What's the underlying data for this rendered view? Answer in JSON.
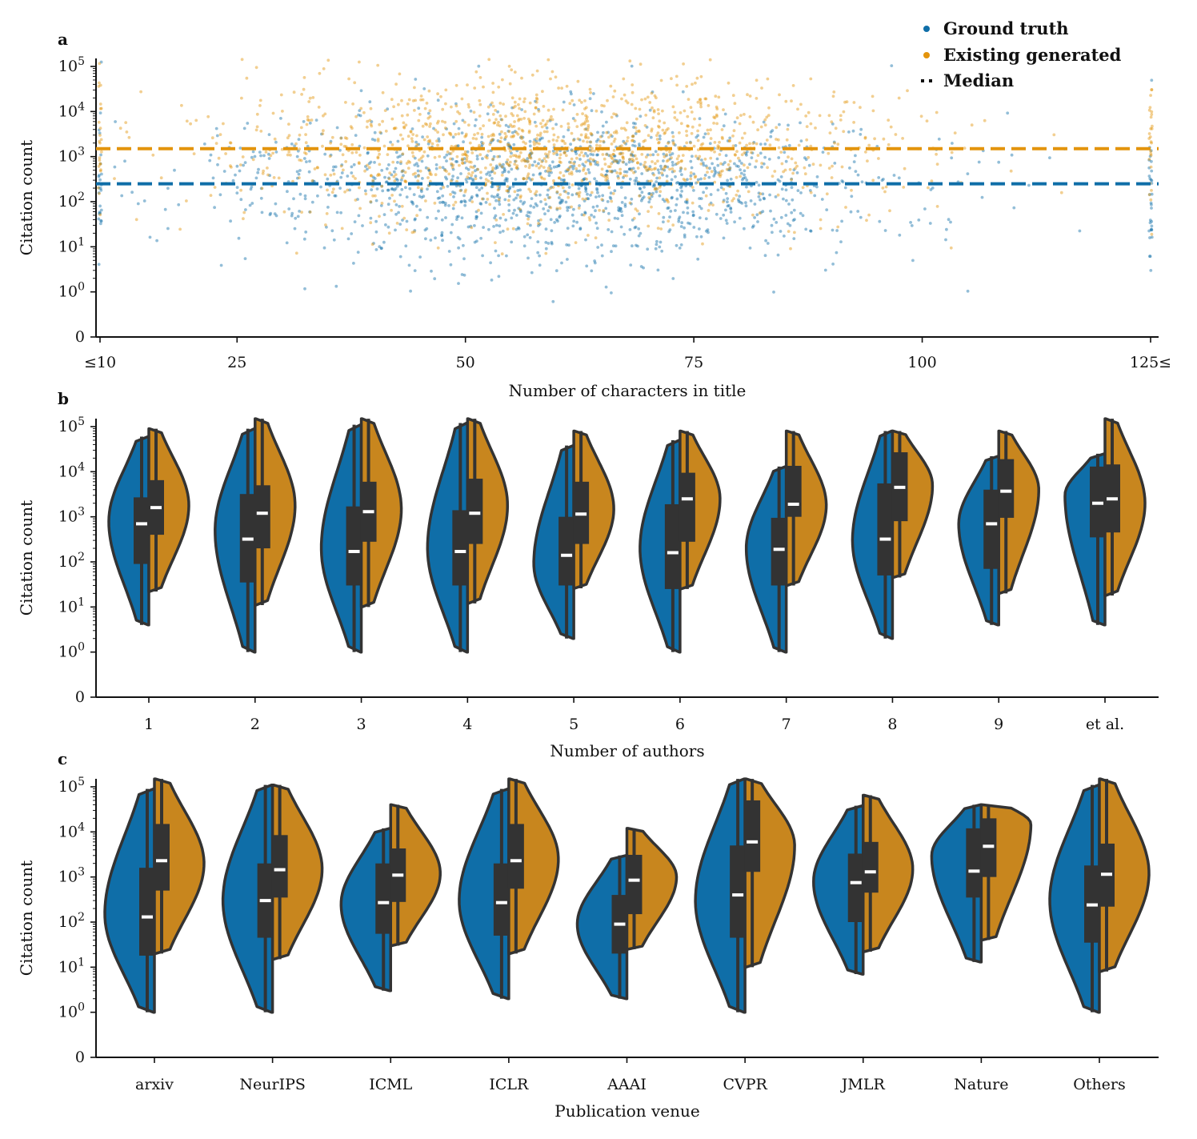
{
  "colors": {
    "ground_truth": "#0f6ea8",
    "existing_generated": "#e3940c",
    "violin_gen": "#c8861e",
    "box": "#333333",
    "median_mark": "#ffffff"
  },
  "chart_data": [
    {
      "panel": "a",
      "type": "scatter",
      "xlabel": "Number of characters in title",
      "ylabel": "Citation count",
      "xlim": [
        10,
        125
      ],
      "xticks": [
        10,
        25,
        50,
        75,
        100,
        125
      ],
      "xtick_labels": [
        "≤10",
        "25",
        "50",
        "75",
        "100",
        "125≤"
      ],
      "yscale": "symlog",
      "ylim": [
        0,
        150000
      ],
      "yticks": [
        0,
        1,
        10,
        100,
        1000,
        10000,
        100000
      ],
      "ytick_labels": [
        "0",
        "10⁰",
        "10¹",
        "10²",
        "10³",
        "10⁴",
        "10⁵"
      ],
      "legend": {
        "placement": "top-right",
        "entries": [
          "Ground truth",
          "Existing generated",
          "Median"
        ]
      },
      "series": [
        {
          "name": "Ground truth",
          "median": 250,
          "n_points_approx": 2500
        },
        {
          "name": "Existing generated",
          "median": 1500,
          "n_points_approx": 2500
        }
      ]
    },
    {
      "panel": "b",
      "type": "violin",
      "xlabel": "Number of authors",
      "ylabel": "Citation count",
      "yscale": "symlog",
      "ylim": [
        0,
        150000
      ],
      "yticks": [
        0,
        1,
        10,
        100,
        1000,
        10000,
        100000
      ],
      "ytick_labels": [
        "0",
        "10⁰",
        "10¹",
        "10²",
        "10³",
        "10⁴",
        "10⁵"
      ],
      "categories": [
        "1",
        "2",
        "3",
        "4",
        "5",
        "6",
        "7",
        "8",
        "9",
        "et al."
      ],
      "series": [
        {
          "name": "Ground truth",
          "min": [
            4,
            1,
            1,
            1,
            2,
            1,
            1,
            2,
            4,
            4
          ],
          "q1": [
            90,
            35,
            30,
            30,
            30,
            25,
            30,
            50,
            70,
            350
          ],
          "median": [
            700,
            320,
            170,
            170,
            140,
            160,
            190,
            320,
            700,
            2000
          ],
          "q3": [
            2700,
            3200,
            1700,
            1400,
            1000,
            1900,
            950,
            5500,
            4000,
            13000
          ],
          "max": [
            60000,
            90000,
            110000,
            120000,
            38000,
            50000,
            13000,
            80000,
            22000,
            25000
          ],
          "mode": [
            800,
            500,
            200,
            200,
            90,
            200,
            200,
            300,
            700,
            3000
          ]
        },
        {
          "name": "Existing generated",
          "min": [
            22,
            11,
            10,
            12,
            26,
            25,
            30,
            45,
            20,
            18
          ],
          "q1": [
            400,
            200,
            280,
            250,
            250,
            280,
            1000,
            800,
            950,
            450
          ],
          "median": [
            1600,
            1200,
            1300,
            1200,
            1150,
            2500,
            1900,
            4500,
            3700,
            2500
          ],
          "q3": [
            6500,
            5000,
            6000,
            7000,
            6000,
            9500,
            13500,
            27000,
            19000,
            14500
          ],
          "max": [
            90000,
            150000,
            150000,
            150000,
            80000,
            80000,
            80000,
            80000,
            80000,
            150000
          ],
          "mode": [
            1800,
            1800,
            1500,
            1800,
            1500,
            2500,
            1800,
            5000,
            4000,
            2000
          ]
        }
      ]
    },
    {
      "panel": "c",
      "type": "violin",
      "xlabel": "Publication venue",
      "ylabel": "Citation count",
      "yscale": "symlog",
      "ylim": [
        0,
        150000
      ],
      "yticks": [
        0,
        1,
        10,
        100,
        1000,
        10000,
        100000
      ],
      "ytick_labels": [
        "0",
        "10⁰",
        "10¹",
        "10²",
        "10³",
        "10⁴",
        "10⁵"
      ],
      "categories": [
        "arxiv",
        "NeurIPS",
        "ICML",
        "ICLR",
        "AAAI",
        "CVPR",
        "JMLR",
        "Nature",
        "Others"
      ],
      "series": [
        {
          "name": "Ground truth",
          "min": [
            1,
            1,
            3,
            2,
            2,
            1,
            7,
            13,
            1
          ],
          "q1": [
            18,
            45,
            55,
            50,
            20,
            45,
            100,
            350,
            35
          ],
          "median": [
            130,
            300,
            270,
            270,
            90,
            400,
            750,
            1350,
            240
          ],
          "q3": [
            1600,
            2000,
            2000,
            2000,
            400,
            5000,
            3300,
            12000,
            1800
          ],
          "max": [
            90000,
            110000,
            12000,
            90000,
            3000,
            150000,
            38000,
            40000,
            110000
          ],
          "mode": [
            150,
            300,
            250,
            300,
            90,
            300,
            800,
            3000,
            300
          ]
        },
        {
          "name": "Existing generated",
          "min": [
            20,
            15,
            30,
            20,
            25,
            10,
            22,
            40,
            8
          ],
          "q1": [
            500,
            350,
            280,
            550,
            150,
            1300,
            450,
            1000,
            220
          ],
          "median": [
            2300,
            1450,
            1100,
            2300,
            850,
            6000,
            1300,
            4800,
            1150
          ],
          "q3": [
            15000,
            8500,
            4300,
            15000,
            3100,
            50000,
            6000,
            20000,
            5500
          ],
          "max": [
            150000,
            110000,
            40000,
            150000,
            12000,
            150000,
            65000,
            40000,
            150000
          ],
          "mode": [
            2000,
            1500,
            1200,
            2500,
            1000,
            5000,
            1500,
            15000,
            1200
          ]
        }
      ]
    }
  ],
  "legend": {
    "ground_truth": "Ground truth",
    "existing_generated": "Existing generated",
    "median": "Median"
  }
}
